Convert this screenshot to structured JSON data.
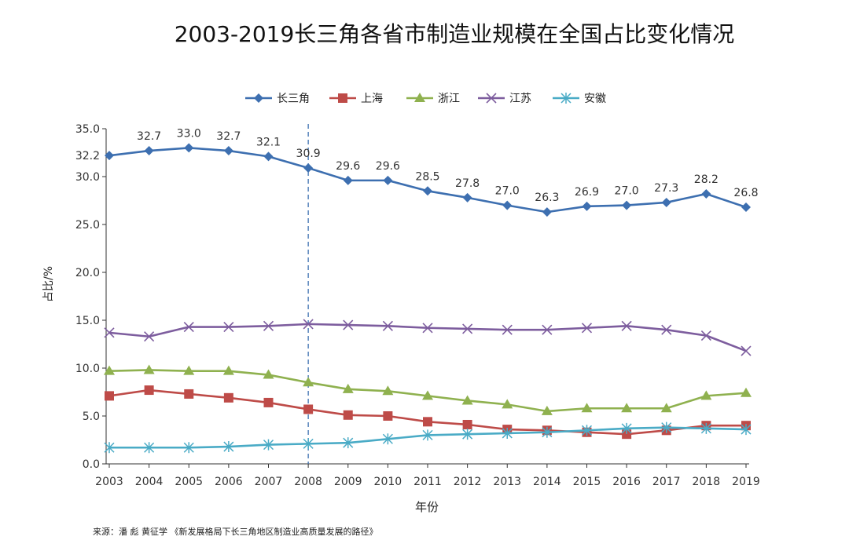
{
  "chart_data": {
    "type": "line",
    "title": "2003-2019长三角各省市制造业规模在全国占比变化情况",
    "xlabel": "年份",
    "ylabel": "占比/%",
    "ylim": [
      0,
      35
    ],
    "yticks": [
      "0.0",
      "5.0",
      "10.0",
      "15.0",
      "20.0",
      "25.0",
      "30.0",
      "35.0"
    ],
    "categories": [
      "2003",
      "2004",
      "2005",
      "2006",
      "2007",
      "2008",
      "2009",
      "2010",
      "2011",
      "2012",
      "2013",
      "2014",
      "2015",
      "2016",
      "2017",
      "2018",
      "2019"
    ],
    "reference_line_x": "2008",
    "series": [
      {
        "name": "长三角",
        "color": "#3d6fb0",
        "marker": "diamond",
        "values": [
          32.2,
          32.7,
          33.0,
          32.7,
          32.1,
          30.9,
          29.6,
          29.6,
          28.5,
          27.8,
          27.0,
          26.3,
          26.9,
          27.0,
          27.3,
          28.2,
          26.8
        ],
        "labels": [
          "32.2",
          "32.7",
          "33.0",
          "32.7",
          "32.1",
          "30.9",
          "29.6",
          "29.6",
          "28.5",
          "27.8",
          "27.0",
          "26.3",
          "26.9",
          "27.0",
          "27.3",
          "28.2",
          "26.8"
        ]
      },
      {
        "name": "上海",
        "color": "#be4b48",
        "marker": "square",
        "values": [
          7.1,
          7.7,
          7.3,
          6.9,
          6.4,
          5.7,
          5.1,
          5.0,
          4.4,
          4.1,
          3.6,
          3.5,
          3.3,
          3.1,
          3.5,
          4.0,
          4.0
        ]
      },
      {
        "name": "浙江",
        "color": "#8fb14f",
        "marker": "triangle",
        "values": [
          9.7,
          9.8,
          9.7,
          9.7,
          9.3,
          8.5,
          7.8,
          7.6,
          7.1,
          6.6,
          6.2,
          5.5,
          5.8,
          5.8,
          5.8,
          7.1,
          7.4
        ]
      },
      {
        "name": "江苏",
        "color": "#7d5d9e",
        "marker": "x",
        "values": [
          13.7,
          13.3,
          14.3,
          14.3,
          14.4,
          14.6,
          14.5,
          14.4,
          14.2,
          14.1,
          14.0,
          14.0,
          14.2,
          14.4,
          14.0,
          13.4,
          11.8
        ]
      },
      {
        "name": "安徽",
        "color": "#4aabc6",
        "marker": "asterisk",
        "values": [
          1.7,
          1.7,
          1.7,
          1.8,
          2.0,
          2.1,
          2.2,
          2.6,
          3.0,
          3.1,
          3.2,
          3.3,
          3.5,
          3.7,
          3.8,
          3.7,
          3.6
        ]
      }
    ]
  },
  "source": "来源：潘 彪  黄征学 《新发展格局下长三角地区制造业高质量发展的路径》"
}
